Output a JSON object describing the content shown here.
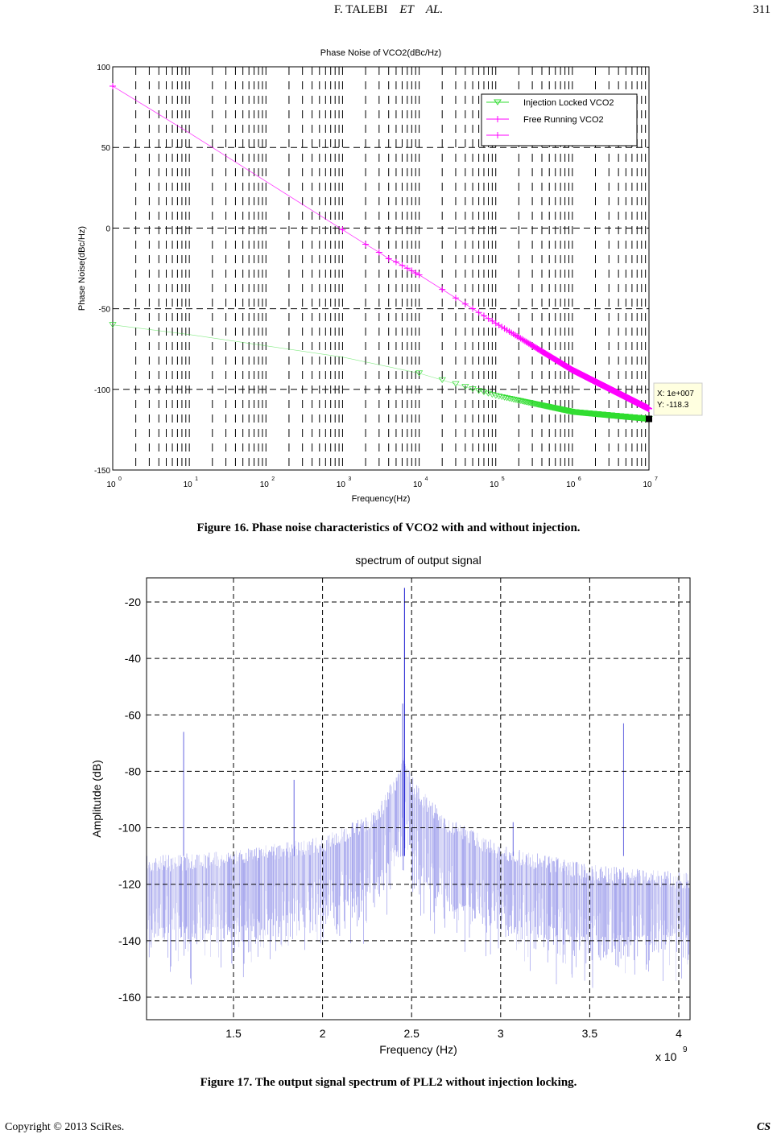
{
  "header": {
    "author": "F. TALEBI",
    "et": "ET",
    "al": "AL.",
    "page_number": "311"
  },
  "figure16": {
    "caption": "Figure 16. Phase noise characteristics of VCO2 with and without injection."
  },
  "figure17": {
    "caption": "Figure 17. The output signal spectrum of PLL2 without injection locking."
  },
  "footer": {
    "copyright": "Copyright © 2013 SciRes.",
    "journal": "CS"
  },
  "chart_data": [
    {
      "type": "line",
      "title": "Phase Noise of VCO2(dBc/Hz)",
      "xlabel": "Frequency(Hz)",
      "ylabel": "Phase Noise(dBc/Hz)",
      "xscale": "log",
      "xlim": [
        1,
        10000000
      ],
      "ylim": [
        -150,
        100
      ],
      "xticks": [
        {
          "base": "10",
          "exp": "0"
        },
        {
          "base": "10",
          "exp": "1"
        },
        {
          "base": "10",
          "exp": "2"
        },
        {
          "base": "10",
          "exp": "3"
        },
        {
          "base": "10",
          "exp": "4"
        },
        {
          "base": "10",
          "exp": "5"
        },
        {
          "base": "10",
          "exp": "6"
        },
        {
          "base": "10",
          "exp": "7"
        }
      ],
      "yticks": [
        "100",
        "50",
        "0",
        "-50",
        "-100",
        "-150"
      ],
      "grid": true,
      "legend_position": "top-right",
      "series": [
        {
          "name": "Injection Locked VCO2",
          "color": "#33dd33",
          "marker": "triangle-down",
          "x": [
            1,
            10,
            100,
            1000,
            10000,
            100000,
            1000000,
            10000000
          ],
          "y": [
            -60,
            -66,
            -73,
            -80,
            -90,
            -104,
            -114,
            -118.3
          ]
        },
        {
          "name": "Free Running VCO2",
          "color": "#ff00ff",
          "marker": "plus",
          "x": [
            1,
            10,
            100,
            1000,
            2000,
            3000,
            4000,
            5000,
            10000,
            100000,
            1000000,
            10000000
          ],
          "y": [
            88,
            59,
            29,
            -1,
            -10,
            -15,
            -19,
            -21,
            -29,
            -59,
            -88,
            -112
          ]
        },
        {
          "name": "",
          "color": "#ff00ff",
          "marker": "plus",
          "x": [],
          "y": []
        }
      ],
      "datatip": {
        "x_label": "X: 1e+007",
        "y_label": "Y: -118.3",
        "x": 10000000,
        "y": -118.3
      }
    },
    {
      "type": "line",
      "title": "spectrum of output signal",
      "xlabel": "Frequency (Hz)",
      "ylabel": "Amplitutde (dB)",
      "x_multiplier": "x 10",
      "x_multiplier_exp": "9",
      "xlim": [
        1.012,
        4.063
      ],
      "ylim": [
        -168,
        -11.4
      ],
      "xticks": [
        "1.5",
        "2",
        "2.5",
        "3",
        "3.5",
        "4"
      ],
      "yticks": [
        "-20",
        "-40",
        "-60",
        "-80",
        "-100",
        "-120",
        "-140",
        "-160"
      ],
      "grid": true,
      "series_color": "#0000cc",
      "noise_envelope": {
        "x": [
          1.012,
          1.5,
          2.0,
          2.3,
          2.42,
          2.46,
          2.52,
          2.7,
          3.0,
          3.5,
          4.063
        ],
        "top": [
          -110,
          -108,
          -103,
          -94,
          -80,
          -73,
          -84,
          -96,
          -106,
          -113,
          -116
        ],
        "bottom": [
          -135,
          -135,
          -128,
          -118,
          -105,
          -98,
          -110,
          -125,
          -130,
          -138,
          -138
        ]
      },
      "peaks": [
        {
          "x": 1.22,
          "y": -66
        },
        {
          "x": 1.84,
          "y": -83
        },
        {
          "x": 2.45,
          "y": -56
        },
        {
          "x": 2.46,
          "y": -15
        },
        {
          "x": 3.07,
          "y": -98
        },
        {
          "x": 3.69,
          "y": -63
        }
      ]
    }
  ]
}
